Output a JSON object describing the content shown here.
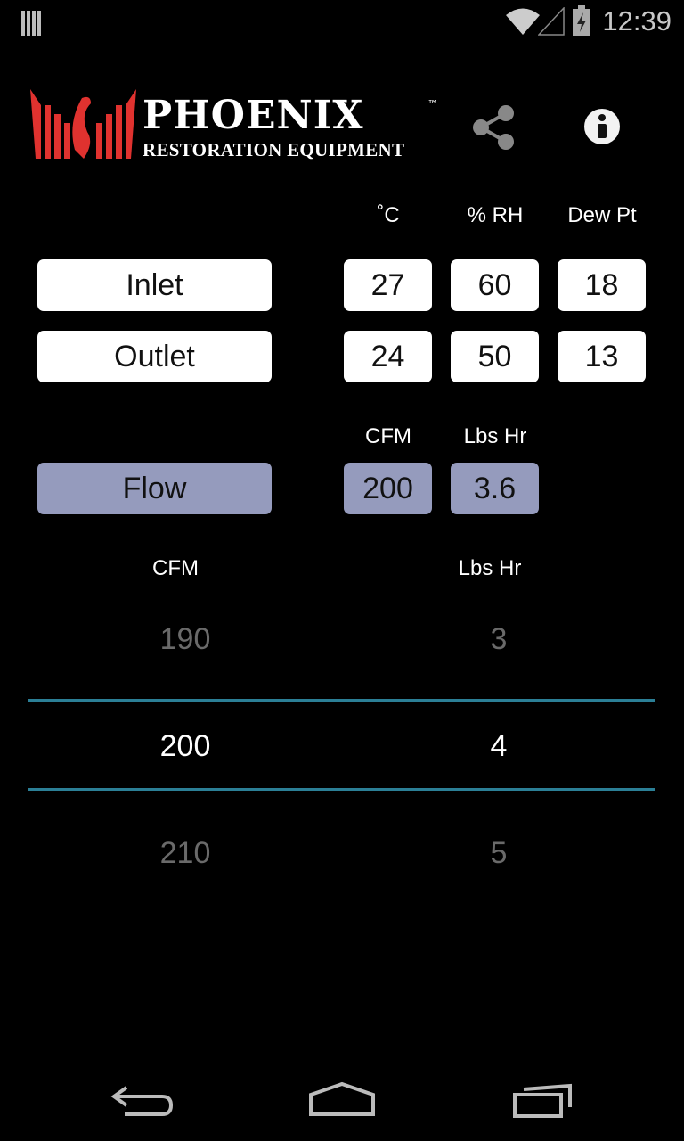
{
  "status_bar": {
    "time": "12:39",
    "icons": [
      "notification-icon",
      "wifi-icon",
      "signal-icon",
      "battery-charging-icon"
    ]
  },
  "header": {
    "logo_title": "PHOENIX",
    "logo_tm": "™",
    "logo_subtitle": "RESTORATION EQUIPMENT",
    "share_icon": "share-icon",
    "info_icon": "info-icon"
  },
  "columns": {
    "temp": "˚C",
    "rh": "% RH",
    "dew": "Dew Pt"
  },
  "rows": [
    {
      "label": "Inlet",
      "temp": "27",
      "rh": "60",
      "dew": "18"
    },
    {
      "label": "Outlet",
      "temp": "24",
      "rh": "50",
      "dew": "13"
    }
  ],
  "flow": {
    "cfm_header": "CFM",
    "lbs_header": "Lbs Hr",
    "label": "Flow",
    "cfm": "200",
    "lbs": "3.6",
    "color": "#959bbd"
  },
  "picker": {
    "cfm_header": "CFM",
    "lbs_header": "Lbs Hr",
    "cfm": [
      "190",
      "200",
      "210"
    ],
    "lbs": [
      "3",
      "4",
      "5"
    ],
    "selected_index": 1,
    "divider_color": "#2b7f96"
  },
  "nav": {
    "back": "back-icon",
    "home": "home-icon",
    "recents": "recents-icon"
  }
}
